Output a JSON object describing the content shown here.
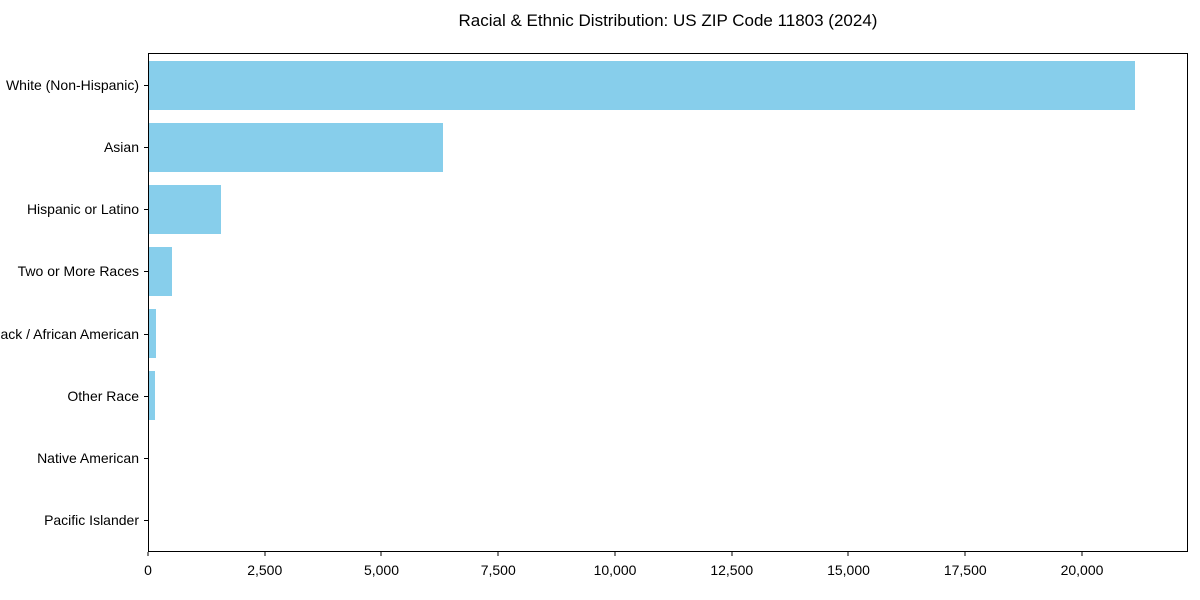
{
  "figure": {
    "background_color": "#ffffff",
    "frame_color": "#000000",
    "text_color": "#000000"
  },
  "chart_data": {
    "type": "bar",
    "orientation": "horizontal",
    "title": "Racial & Ethnic Distribution: US ZIP Code 11803 (2024)",
    "xlabel": "",
    "ylabel": "",
    "grid": false,
    "legend_position": "none",
    "bar_color": "#87CEEB",
    "xlim": [
      0,
      22270
    ],
    "categories": [
      "White (Non-Hispanic)",
      "Asian",
      "Hispanic or Latino",
      "Two or More Races",
      "Black / African American",
      "Other Race",
      "Native American",
      "Pacific Islander"
    ],
    "values": [
      21150,
      6300,
      1550,
      490,
      140,
      120,
      0,
      0
    ],
    "xticks": [
      {
        "value": 0,
        "label": "0"
      },
      {
        "value": 2500,
        "label": "2,500"
      },
      {
        "value": 5000,
        "label": "5,000"
      },
      {
        "value": 7500,
        "label": "7,500"
      },
      {
        "value": 10000,
        "label": "10,000"
      },
      {
        "value": 12500,
        "label": "12,500"
      },
      {
        "value": 15000,
        "label": "15,000"
      },
      {
        "value": 17500,
        "label": "17,500"
      },
      {
        "value": 20000,
        "label": "20,000"
      }
    ]
  }
}
